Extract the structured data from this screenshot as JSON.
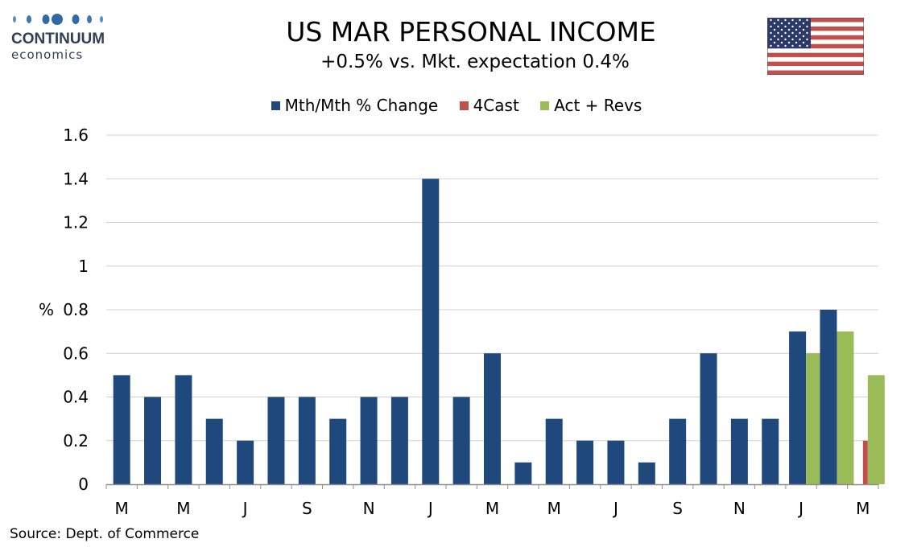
{
  "logo": {
    "top_text": "CONTINUUM",
    "bottom_text": "economics"
  },
  "title": "US MAR PERSONAL INCOME",
  "subtitle": "+0.5% vs. Mkt. expectation 0.4%",
  "flag_icon": "us-flag-icon",
  "source": "Source: Dept. of Commerce",
  "chart_data": {
    "type": "bar",
    "ylabel": "%",
    "ylim": [
      0,
      1.6
    ],
    "yticks": [
      "0",
      "0.2",
      "0.4",
      "0.6",
      "0.8",
      "1",
      "1.2",
      "1.4",
      "1.6"
    ],
    "grid": true,
    "legend_position": "top-center",
    "x_tick_labels": [
      "M",
      "M",
      "J",
      "S",
      "N",
      "J",
      "M",
      "M",
      "J",
      "S",
      "N",
      "J",
      "M"
    ],
    "series": [
      {
        "name": "Mth/Mth % Change",
        "color": "#1f497d",
        "values": [
          0.5,
          0.4,
          0.5,
          0.3,
          0.2,
          0.4,
          0.4,
          0.3,
          0.4,
          0.4,
          1.4,
          0.4,
          0.6,
          0.1,
          0.3,
          0.2,
          0.2,
          0.1,
          0.3,
          0.6,
          0.3,
          0.3,
          0.7,
          0.8,
          null
        ]
      },
      {
        "name": "4Cast",
        "color": "#c0504d",
        "values": [
          null,
          null,
          null,
          null,
          null,
          null,
          null,
          null,
          null,
          null,
          null,
          null,
          null,
          null,
          null,
          null,
          null,
          null,
          null,
          null,
          null,
          null,
          null,
          null,
          0.2
        ]
      },
      {
        "name": "Act + Revs",
        "color": "#9bbb59",
        "values": [
          null,
          null,
          null,
          null,
          null,
          null,
          null,
          null,
          null,
          null,
          null,
          null,
          null,
          null,
          null,
          null,
          null,
          null,
          null,
          null,
          null,
          null,
          0.6,
          0.7,
          0.5
        ]
      }
    ]
  }
}
